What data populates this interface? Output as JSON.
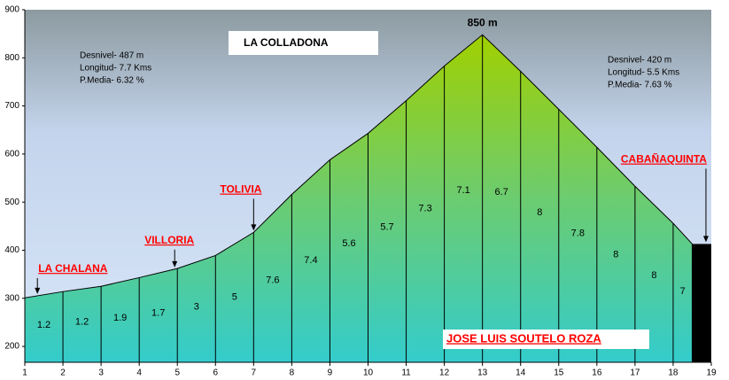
{
  "chart_data": {
    "type": "area",
    "title": "LA COLLADONA",
    "author": "JOSE LUIS SOUTELO ROZA",
    "peak_label": "850 m",
    "x": [
      1,
      2,
      3,
      4,
      5,
      6,
      7,
      8,
      9,
      10,
      11,
      12,
      13,
      14,
      15,
      16,
      17,
      18,
      18.5
    ],
    "values": [
      301,
      314,
      325,
      343,
      362,
      389,
      437,
      516,
      588,
      643,
      711,
      783,
      848,
      772,
      693,
      614,
      533,
      456,
      413
    ],
    "gradients": {
      "values": [
        1.2,
        1.2,
        1.9,
        1.7,
        3,
        5,
        7.6,
        7.4,
        5.6,
        5.7,
        7.3,
        7.1,
        6.7,
        8,
        7.8,
        8,
        8,
        7
      ]
    },
    "end_color": "#000000",
    "xlim": [
      1,
      19
    ],
    "xticks": [
      1,
      2,
      3,
      4,
      5,
      6,
      7,
      8,
      9,
      10,
      11,
      12,
      13,
      14,
      15,
      16,
      17,
      18,
      19
    ],
    "ylim": [
      167,
      900
    ],
    "yticks": [
      200,
      300,
      400,
      500,
      600,
      700,
      800,
      900
    ],
    "annotations": [
      {
        "text": "LA CHALANA",
        "x": 1.33
      },
      {
        "text": "VILLORIA",
        "x": 4.93
      },
      {
        "text": "TOLIVIA",
        "x": 7
      },
      {
        "text": "CABAÑAQUINTA",
        "x": 18.86
      }
    ],
    "stats_left": [
      "Desnivel- 487 m",
      "Longitud- 7.7 Kms",
      "P.Media- 6.32 %"
    ],
    "stats_right": [
      "Desnivel- 420 m",
      "Longitud- 5.5 Kms",
      "P.Media- 7.63 %"
    ]
  }
}
